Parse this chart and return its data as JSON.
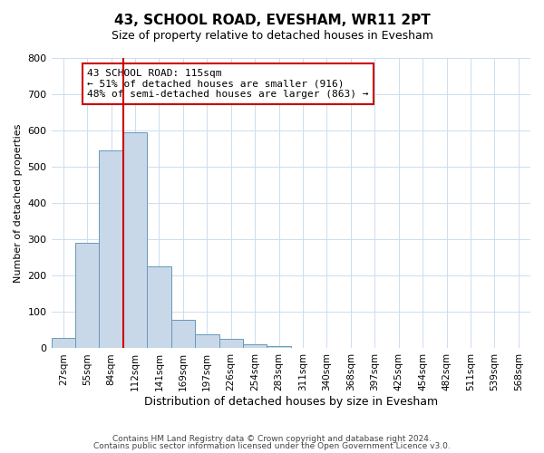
{
  "title": "43, SCHOOL ROAD, EVESHAM, WR11 2PT",
  "subtitle": "Size of property relative to detached houses in Evesham",
  "xlabel": "Distribution of detached houses by size in Evesham",
  "ylabel": "Number of detached properties",
  "bin_labels": [
    "27sqm",
    "55sqm",
    "84sqm",
    "112sqm",
    "141sqm",
    "169sqm",
    "197sqm",
    "226sqm",
    "254sqm",
    "283sqm",
    "311sqm",
    "340sqm",
    "368sqm",
    "397sqm",
    "425sqm",
    "454sqm",
    "482sqm",
    "511sqm",
    "539sqm",
    "568sqm"
  ],
  "bar_values": [
    28,
    290,
    545,
    595,
    225,
    78,
    38,
    25,
    12,
    5,
    0,
    0,
    0,
    0,
    0,
    0,
    0,
    0,
    0,
    0
  ],
  "bar_color": "#c8d8e8",
  "bar_edge_color": "#6699bb",
  "property_line_color": "#cc0000",
  "annotation_title": "43 SCHOOL ROAD: 115sqm",
  "annotation_line1": "← 51% of detached houses are smaller (916)",
  "annotation_line2": "48% of semi-detached houses are larger (863) →",
  "annotation_box_edge_color": "#cc0000",
  "ylim": [
    0,
    800
  ],
  "yticks": [
    0,
    100,
    200,
    300,
    400,
    500,
    600,
    700,
    800
  ],
  "footer1": "Contains HM Land Registry data © Crown copyright and database right 2024.",
  "footer2": "Contains public sector information licensed under the Open Government Licence v3.0."
}
